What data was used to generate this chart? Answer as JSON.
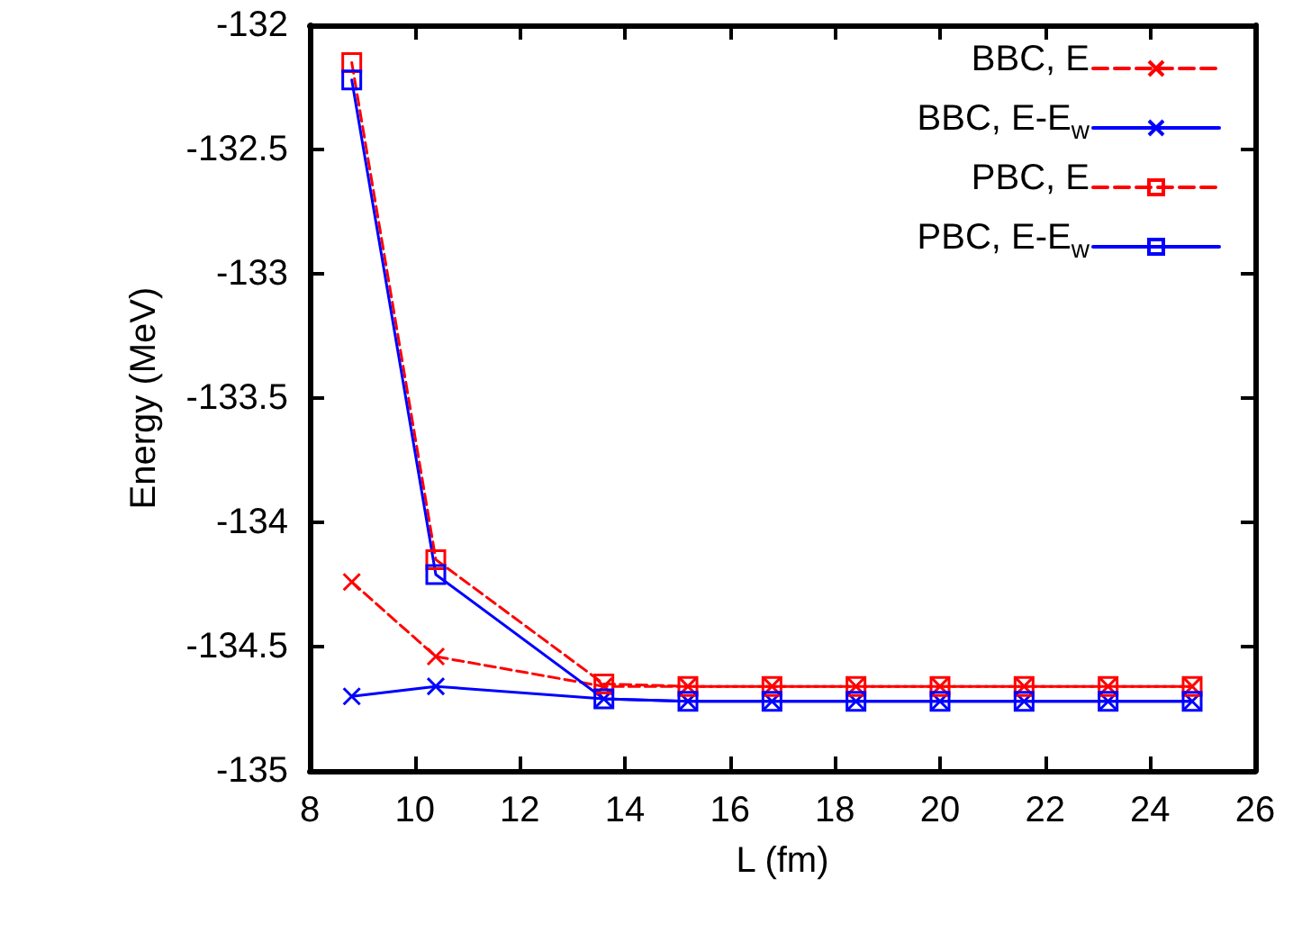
{
  "chart_data": {
    "type": "line",
    "xlabel": "L (fm)",
    "ylabel": "Energy (MeV)",
    "x": [
      8.8,
      10.4,
      13.6,
      15.2,
      16.8,
      18.4,
      20,
      21.6,
      23.2,
      24.8
    ],
    "series": [
      {
        "name": "BBC, E",
        "color": "#ff0000",
        "marker": "cross",
        "line_style": "dashed",
        "values": [
          -134.24,
          -134.54,
          -134.66,
          -134.66,
          -134.66,
          -134.66,
          -134.66,
          -134.66,
          -134.66,
          -134.66
        ]
      },
      {
        "name": "BBC, E-E$_{w}$",
        "color": "#0000ff",
        "marker": "cross",
        "line_style": "solid",
        "values": [
          -134.7,
          -134.66,
          -134.71,
          -134.72,
          -134.72,
          -134.72,
          -134.72,
          -134.72,
          -134.72,
          -134.72
        ]
      },
      {
        "name": "PBC, E",
        "color": "#ff0000",
        "marker": "square",
        "line_style": "dashed",
        "values": [
          -132.15,
          -134.15,
          -134.65,
          -134.66,
          -134.66,
          -134.66,
          -134.66,
          -134.66,
          -134.66,
          -134.66
        ]
      },
      {
        "name": "PBC, E-E$_{w}$",
        "color": "#0000ff",
        "marker": "square",
        "line_style": "solid",
        "values": [
          -132.22,
          -134.21,
          -134.71,
          -134.72,
          -134.72,
          -134.72,
          -134.72,
          -134.72,
          -134.72,
          -134.72
        ]
      }
    ],
    "xlim": [
      8,
      26
    ],
    "xticks": [
      8,
      10,
      12,
      14,
      16,
      18,
      20,
      22,
      24,
      26
    ],
    "ylim": [
      -135,
      -132
    ],
    "yticks": [
      -135,
      -134.5,
      -134,
      -133.5,
      -133,
      -132.5,
      -132
    ],
    "grid": false,
    "legend": "top right"
  }
}
